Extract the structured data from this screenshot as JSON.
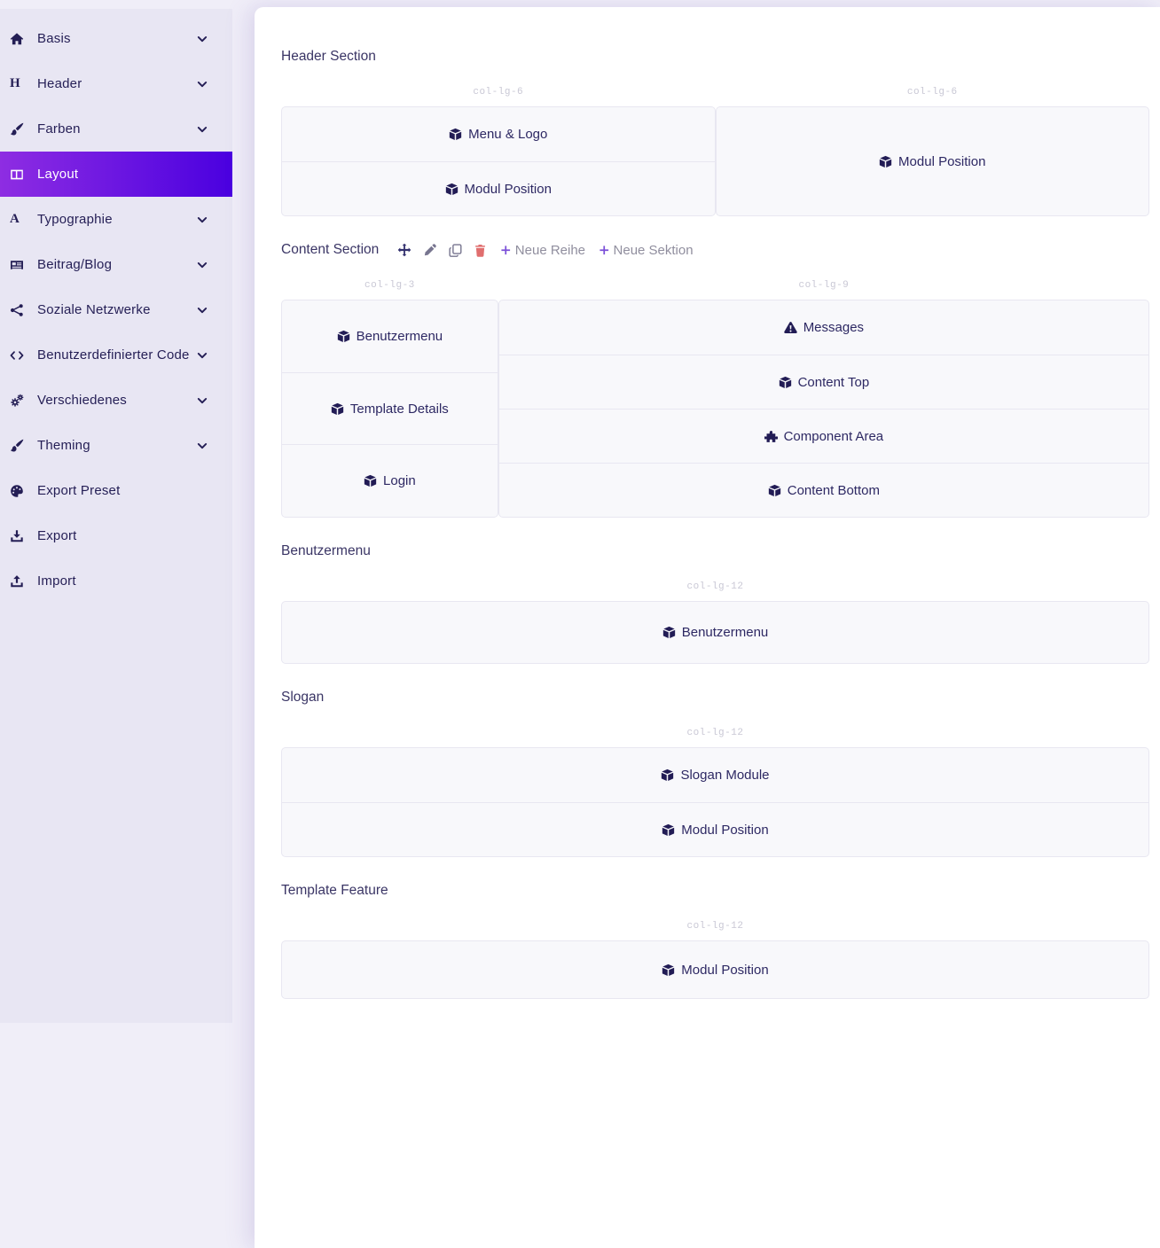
{
  "colors": {
    "active_gradient_start": "#8e2de2",
    "active_gradient_end": "#4a00e0",
    "page_bg": "#f0eef8",
    "sidebar_bg": "#e8e6f3",
    "card_bg": "#ffffff",
    "module_bg": "#f8f8fb",
    "module_border": "#e8e7f1",
    "text_dark": "#241e55",
    "module_text": "#2d2863",
    "muted_label": "#c9c8d5",
    "toolbar_gray": "#908e9e",
    "plus_purple": "#7b4fd8",
    "trash_red": "#e06e6e"
  },
  "sidebar": {
    "items": [
      {
        "label": "Basis",
        "icon": "home-icon",
        "chevron": true,
        "active": false
      },
      {
        "label": "Header",
        "icon": "header-icon",
        "chevron": true,
        "active": false
      },
      {
        "label": "Farben",
        "icon": "paint-brush-icon",
        "chevron": true,
        "active": false
      },
      {
        "label": "Layout",
        "icon": "columns-icon",
        "chevron": false,
        "active": true
      },
      {
        "label": "Typographie",
        "icon": "font-icon",
        "chevron": true,
        "active": false
      },
      {
        "label": "Beitrag/Blog",
        "icon": "newspaper-icon",
        "chevron": true,
        "active": false
      },
      {
        "label": "Soziale Netzwerke",
        "icon": "share-icon",
        "chevron": true,
        "active": false
      },
      {
        "label": "Benutzerdefinierter Code",
        "icon": "code-icon",
        "chevron": true,
        "active": false
      },
      {
        "label": "Verschiedenes",
        "icon": "cogs-icon",
        "chevron": true,
        "active": false
      },
      {
        "label": "Theming",
        "icon": "paint-brush-icon",
        "chevron": true,
        "active": false
      },
      {
        "label": "Export Preset",
        "icon": "palette-icon",
        "chevron": false,
        "active": false
      },
      {
        "label": "Export",
        "icon": "download-icon",
        "chevron": false,
        "active": false
      },
      {
        "label": "Import",
        "icon": "upload-icon",
        "chevron": false,
        "active": false
      }
    ]
  },
  "builder": {
    "sections": [
      {
        "title": "Header Section",
        "rows": [
          {
            "columns": [
              {
                "width_label": "col-lg-6",
                "modules": [
                  {
                    "icon": "cube-icon",
                    "label": "Menu & Logo"
                  },
                  {
                    "icon": "cube-icon",
                    "label": "Modul Position"
                  }
                ]
              },
              {
                "width_label": "col-lg-6",
                "modules": [
                  {
                    "icon": "cube-icon",
                    "label": "Modul Position"
                  }
                ]
              }
            ]
          }
        ]
      },
      {
        "title": "Content Section",
        "toolbar": {
          "tools": [
            {
              "name": "move",
              "icon": "move-icon"
            },
            {
              "name": "edit",
              "icon": "pencil-icon"
            },
            {
              "name": "copy",
              "icon": "copy-icon"
            },
            {
              "name": "delete",
              "icon": "trash-icon"
            }
          ],
          "actions": [
            {
              "name": "new-row",
              "icon": "plus-icon",
              "label": "Neue Reihe"
            },
            {
              "name": "new-section",
              "icon": "plus-icon",
              "label": "Neue Sektion"
            }
          ]
        },
        "rows": [
          {
            "columns": [
              {
                "width_label": "col-lg-3",
                "modules": [
                  {
                    "icon": "cube-icon",
                    "label": "Benutzermenu"
                  },
                  {
                    "icon": "cube-icon",
                    "label": "Template Details"
                  },
                  {
                    "icon": "cube-icon",
                    "label": "Login"
                  }
                ]
              },
              {
                "width_label": "col-lg-9",
                "modules": [
                  {
                    "icon": "warning-icon",
                    "label": "Messages"
                  },
                  {
                    "icon": "cube-icon",
                    "label": "Content Top"
                  },
                  {
                    "icon": "puzzle-icon",
                    "label": "Component Area"
                  },
                  {
                    "icon": "cube-icon",
                    "label": "Content Bottom"
                  }
                ]
              }
            ]
          }
        ]
      },
      {
        "title": "Benutzermenu",
        "rows": [
          {
            "columns": [
              {
                "width_label": "col-lg-12",
                "modules": [
                  {
                    "icon": "cube-icon",
                    "label": "Benutzermenu"
                  }
                ]
              }
            ]
          }
        ]
      },
      {
        "title": "Slogan",
        "rows": [
          {
            "columns": [
              {
                "width_label": "col-lg-12",
                "modules": [
                  {
                    "icon": "cube-icon",
                    "label": "Slogan Module"
                  },
                  {
                    "icon": "cube-icon",
                    "label": "Modul Position"
                  }
                ]
              }
            ]
          }
        ]
      },
      {
        "title": "Template Feature",
        "rows": [
          {
            "columns": [
              {
                "width_label": "col-lg-12",
                "modules": [
                  {
                    "icon": "cube-icon",
                    "label": "Modul Position"
                  }
                ]
              }
            ]
          }
        ]
      }
    ]
  }
}
